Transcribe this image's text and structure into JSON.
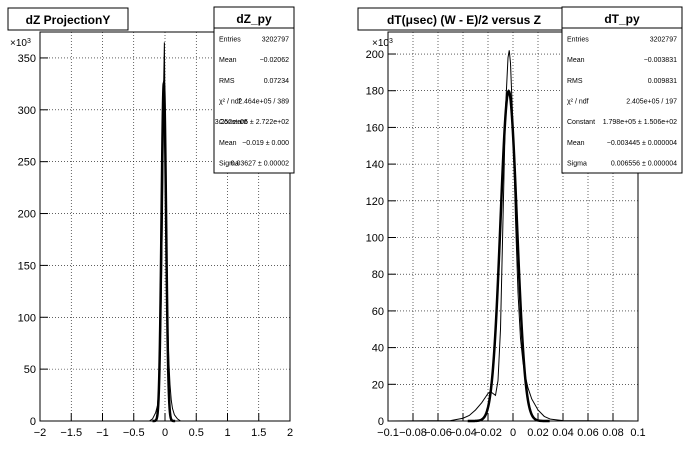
{
  "chart_data": [
    {
      "type": "line",
      "title": "dZ ProjectionY",
      "xlim": [
        -2,
        2
      ],
      "ylim": [
        0,
        375000
      ],
      "y_exponent_label": "×10",
      "y_exponent_power": "3",
      "grid": true,
      "x_ticks": [
        -2,
        -1.5,
        -1,
        -0.5,
        0,
        0.5,
        1,
        1.5,
        2
      ],
      "x_tick_labels": [
        "−2",
        "−1.5",
        "−1",
        "−0.5",
        "0",
        "0.5",
        "1",
        "1.5",
        "2"
      ],
      "y_ticks": [
        0,
        50,
        100,
        150,
        200,
        250,
        300,
        350
      ],
      "y_tick_labels": [
        "0",
        "50",
        "100",
        "150",
        "200",
        "250",
        "300",
        "350"
      ],
      "stats": {
        "title": "dZ_py",
        "rows": [
          {
            "label": "Entries",
            "value": "3202797"
          },
          {
            "label": "Mean",
            "value": "−0.02062"
          },
          {
            "label": "RMS",
            "value": "0.07234"
          },
          {
            "label": "χ² / ndf",
            "value": "2.464e+05 / 389"
          },
          {
            "label": "Constant",
            "value": "3.252e+05 ± 2.722e+02"
          },
          {
            "label": "Mean",
            "value": "−0.019 ± 0.000"
          },
          {
            "label": "Sigma",
            "value": "0.03627 ± 0.00002"
          }
        ]
      },
      "series": [
        {
          "kind": "histogram",
          "x": [
            -0.25,
            -0.2,
            -0.15,
            -0.12,
            -0.1,
            -0.08,
            -0.06,
            -0.04,
            -0.03,
            -0.02,
            -0.01,
            0.0,
            0.01,
            0.02,
            0.03,
            0.04,
            0.06,
            0.08,
            0.1,
            0.12,
            0.15,
            0.2,
            0.25
          ],
          "y": [
            0,
            2000,
            8000,
            15000,
            30000,
            60000,
            120000,
            200000,
            260000,
            330000,
            365000,
            300000,
            230000,
            180000,
            140000,
            100000,
            60000,
            35000,
            20000,
            12000,
            6000,
            2000,
            0
          ]
        },
        {
          "kind": "fit",
          "function": "gaussian",
          "constant": 325200,
          "mean": -0.019,
          "sigma": 0.03627
        }
      ]
    },
    {
      "type": "line",
      "title": "dT(μsec) (W - E)/2 versus Z",
      "xlim": [
        -0.1,
        0.1
      ],
      "ylim": [
        0,
        212000
      ],
      "y_exponent_label": "×10",
      "y_exponent_power": "3",
      "grid": true,
      "x_ticks": [
        -0.1,
        -0.08,
        -0.06,
        -0.04,
        -0.02,
        0,
        0.02,
        0.04,
        0.06,
        0.08,
        0.1
      ],
      "x_tick_labels": [
        "−0.1",
        "−0.08",
        "−0.06",
        "−0.04",
        "−0.02",
        "0",
        "0.02",
        "0.04",
        "0.06",
        "0.08",
        "0.1"
      ],
      "y_ticks": [
        0,
        20,
        40,
        60,
        80,
        100,
        120,
        140,
        160,
        180,
        200
      ],
      "y_tick_labels": [
        "0",
        "20",
        "40",
        "60",
        "80",
        "100",
        "120",
        "140",
        "160",
        "180",
        "200"
      ],
      "stats": {
        "title": "dT_py",
        "rows": [
          {
            "label": "Entries",
            "value": "3202797"
          },
          {
            "label": "Mean",
            "value": "−0.003831"
          },
          {
            "label": "RMS",
            "value": "0.009831"
          },
          {
            "label": "χ² / ndf",
            "value": "2.405e+05 / 197"
          },
          {
            "label": "Constant",
            "value": "1.798e+05 ± 1.506e+02"
          },
          {
            "label": "Mean",
            "value": "−0.003445 ± 0.000004"
          },
          {
            "label": "Sigma",
            "value": "0.006556 ± 0.000004"
          }
        ]
      },
      "series": [
        {
          "kind": "histogram",
          "x": [
            -0.1,
            -0.05,
            -0.04,
            -0.035,
            -0.03,
            -0.025,
            -0.022,
            -0.02,
            -0.018,
            -0.016,
            -0.014,
            -0.012,
            -0.01,
            -0.008,
            -0.006,
            -0.004,
            -0.003,
            -0.002,
            0.0,
            0.002,
            0.004,
            0.006,
            0.008,
            0.01,
            0.012,
            0.015,
            0.02,
            0.025,
            0.03,
            0.04,
            0.1
          ],
          "y": [
            0,
            200,
            1500,
            3000,
            6000,
            10000,
            13000,
            15000,
            16000,
            15000,
            14000,
            22000,
            50000,
            110000,
            170000,
            198000,
            202000,
            195000,
            160000,
            110000,
            70000,
            45000,
            32000,
            24000,
            18000,
            12000,
            6000,
            2500,
            1000,
            200,
            0
          ]
        },
        {
          "kind": "fit",
          "function": "gaussian",
          "constant": 179800,
          "mean": -0.003445,
          "sigma": 0.006556
        }
      ]
    }
  ]
}
